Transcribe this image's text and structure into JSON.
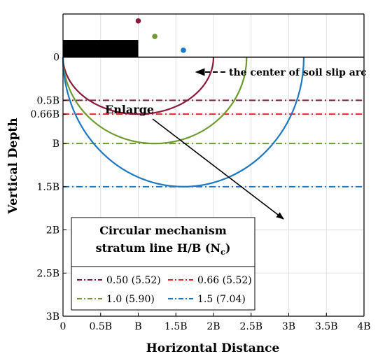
{
  "chart_data": {
    "type": "diagram",
    "xlabel": "Horizontal Distance",
    "ylabel": "Vertical Depth",
    "x_range": [
      0,
      4
    ],
    "y_range": [
      -0.5,
      3
    ],
    "y_inverted": true,
    "x_ticks": [
      {
        "value": 0,
        "label": "0"
      },
      {
        "value": 0.5,
        "label": "0.5B"
      },
      {
        "value": 1,
        "label": "B"
      },
      {
        "value": 1.5,
        "label": "1.5B"
      },
      {
        "value": 2,
        "label": "2B"
      },
      {
        "value": 2.5,
        "label": "2.5B"
      },
      {
        "value": 3,
        "label": "3B"
      },
      {
        "value": 3.5,
        "label": "3.5B"
      },
      {
        "value": 4,
        "label": "4B"
      }
    ],
    "y_ticks": [
      {
        "value": 0,
        "label": "0"
      },
      {
        "value": 0.5,
        "label": "0.5B"
      },
      {
        "value": 0.66,
        "label": "0.66B"
      },
      {
        "value": 1,
        "label": "B"
      },
      {
        "value": 1.5,
        "label": "1.5B"
      },
      {
        "value": 2,
        "label": "2B"
      },
      {
        "value": 2.5,
        "label": "2.5B"
      },
      {
        "value": 3,
        "label": "3B"
      }
    ],
    "grid": true,
    "footing": {
      "x0": 0,
      "x1": 1,
      "top": -0.2,
      "bottom": 0
    },
    "ground_line": 0,
    "series": [
      {
        "name": "0.50 (5.52)",
        "color": "#8B1A3A",
        "stratum": 0.5,
        "center": [
          1.0,
          -0.42
        ],
        "arc": {
          "cx": 1.0,
          "cy": 0,
          "r": 1.0,
          "depth": 0.66
        }
      },
      {
        "name": "0.66 (5.52)",
        "color": "#E8272D",
        "stratum": 0.66,
        "center": [
          1.0,
          -0.42
        ],
        "arc": {
          "cx": 1.0,
          "cy": 0,
          "r": 1.0,
          "depth": 0.66
        }
      },
      {
        "name": "1.0 (5.90)",
        "color": "#6E9A2E",
        "stratum": 1.0,
        "center": [
          1.22,
          -0.24
        ],
        "arc": {
          "cx": 1.22,
          "cy": 0,
          "r": 1.22,
          "depth": 1.0
        }
      },
      {
        "name": "1.5 (7.04)",
        "color": "#1E78C2",
        "stratum": 1.5,
        "center": [
          1.6,
          -0.08
        ],
        "arc": {
          "cx": 1.6,
          "cy": 0,
          "r": 1.6,
          "depth": 1.5
        }
      }
    ],
    "annotations": {
      "center_label": "the center of soil slip arc",
      "enlarge_label": "Enlarge"
    },
    "legend": {
      "title_line1": "Circular mechanism",
      "title_line2_prefix": "stratum line H/B (N",
      "title_line2_sub": "c",
      "title_line2_suffix": ")",
      "placement": "bottom-left"
    }
  }
}
